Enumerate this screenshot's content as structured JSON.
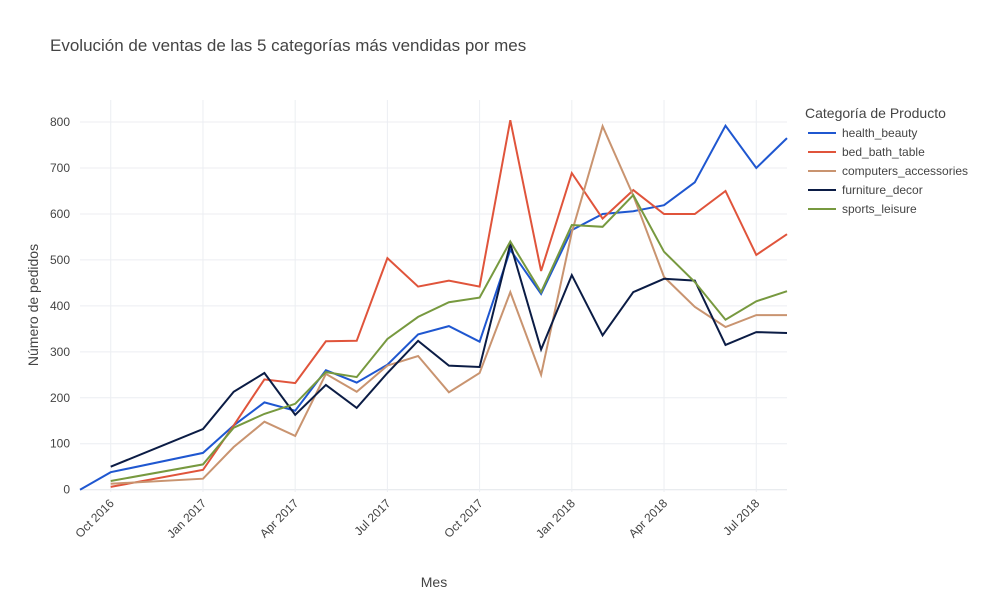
{
  "chart_data": {
    "type": "line",
    "title": "Evolución de ventas de las 5 categorías más vendidas por mes",
    "x_label": "Mes",
    "y_label": "Número de pedidos",
    "legend_title": "Categoría de Producto",
    "x": [
      "2016-09",
      "2016-10",
      "2017-01",
      "2017-02",
      "2017-03",
      "2017-04",
      "2017-05",
      "2017-06",
      "2017-07",
      "2017-08",
      "2017-09",
      "2017-10",
      "2017-11",
      "2017-12",
      "2018-01",
      "2018-02",
      "2018-03",
      "2018-04",
      "2018-05",
      "2018-06",
      "2018-07",
      "2018-08"
    ],
    "series": [
      {
        "name": "health_beauty",
        "color": "#1f57d0",
        "values": [
          0,
          38,
          80,
          140,
          190,
          172,
          260,
          233,
          272,
          338,
          356,
          322,
          522,
          426,
          565,
          600,
          606,
          619,
          669,
          792,
          700,
          765
        ]
      },
      {
        "name": "bed_bath_table",
        "color": "#e0543b",
        "values": [
          null,
          6,
          43,
          140,
          240,
          232,
          323,
          324,
          504,
          442,
          455,
          442,
          804,
          476,
          689,
          590,
          652,
          600,
          600,
          650,
          511,
          556
        ]
      },
      {
        "name": "computers_accessories",
        "color": "#c99470",
        "values": [
          null,
          13,
          24,
          93,
          148,
          117,
          252,
          213,
          270,
          291,
          212,
          254,
          430,
          250,
          560,
          791,
          640,
          463,
          398,
          354,
          380,
          380
        ]
      },
      {
        "name": "furniture_decor",
        "color": "#0b1c45",
        "values": [
          null,
          50,
          132,
          213,
          254,
          163,
          228,
          178,
          254,
          324,
          270,
          267,
          535,
          305,
          467,
          336,
          430,
          459,
          455,
          315,
          343,
          341
        ]
      },
      {
        "name": "sports_leisure",
        "color": "#77993f",
        "values": [
          null,
          19,
          55,
          135,
          165,
          187,
          256,
          245,
          328,
          376,
          408,
          418,
          540,
          430,
          576,
          572,
          641,
          518,
          452,
          370,
          410,
          432
        ]
      }
    ],
    "xlim": [
      "2016-09",
      "2018-08"
    ],
    "xticks": [
      {
        "value": "2016-10",
        "label": "Oct 2016"
      },
      {
        "value": "2017-01",
        "label": "Jan 2017"
      },
      {
        "value": "2017-04",
        "label": "Apr 2017"
      },
      {
        "value": "2017-07",
        "label": "Jul 2017"
      },
      {
        "value": "2017-10",
        "label": "Oct 2017"
      },
      {
        "value": "2018-01",
        "label": "Jan 2018"
      },
      {
        "value": "2018-04",
        "label": "Apr 2018"
      },
      {
        "value": "2018-07",
        "label": "Jul 2018"
      }
    ],
    "ylim": [
      -5,
      848
    ],
    "yticks": [
      0,
      100,
      200,
      300,
      400,
      500,
      600,
      700,
      800
    ],
    "grid": true,
    "legend_position": "right"
  }
}
